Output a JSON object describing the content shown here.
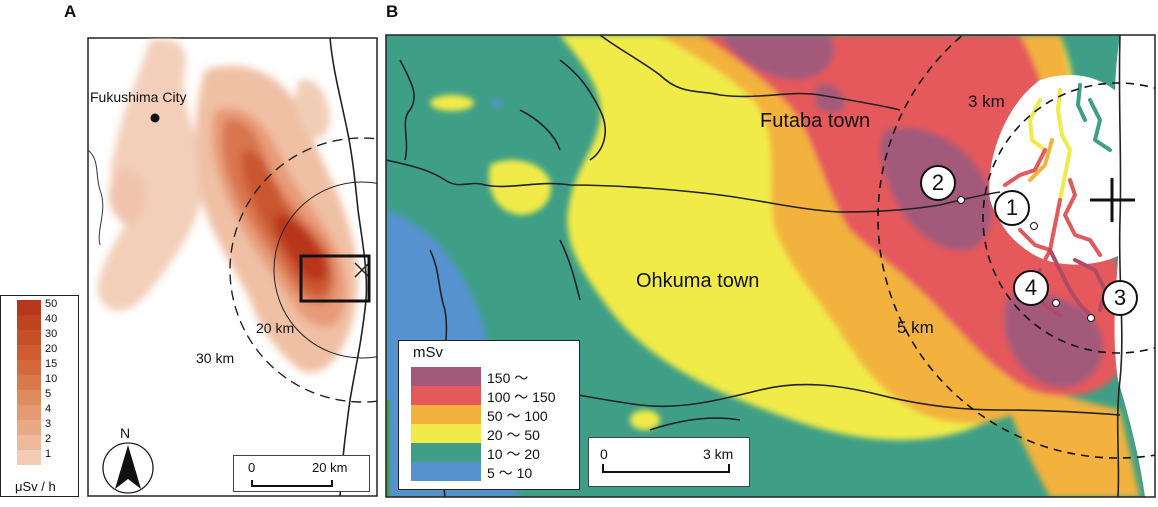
{
  "panel_a": {
    "label": "A",
    "city_label": "Fukushima City",
    "ring_labels": [
      "20 km",
      "30 km"
    ],
    "north_label": "N",
    "scalebar": {
      "start": "0",
      "end": "20 km"
    },
    "legend": {
      "unit": "μSv / h",
      "values": [
        "50",
        "40",
        "30",
        "20",
        "15",
        "10",
        "5",
        "4",
        "3",
        "2",
        "1"
      ],
      "colors": [
        "#b8361b",
        "#c0431f",
        "#c74f27",
        "#cd5c30",
        "#d46a3c",
        "#da7a4c",
        "#df8a5f",
        "#e49a72",
        "#e8aa86",
        "#edbb9c",
        "#f2cdb6"
      ]
    }
  },
  "panel_b": {
    "label": "B",
    "town_labels": [
      "Futaba town",
      "Ohkuma town"
    ],
    "ring_labels": [
      "3 km",
      "5 km"
    ],
    "site_markers": [
      "1",
      "2",
      "3",
      "4"
    ],
    "scalebar": {
      "start": "0",
      "end": "3 km"
    },
    "legend": {
      "title": "mSv",
      "entries": [
        {
          "label": "150 ～",
          "color": "#a35a7a"
        },
        {
          "label": "100 ～ 150",
          "color": "#e5595b"
        },
        {
          "label": "50 ～ 100",
          "color": "#f3b23e"
        },
        {
          "label": "20 ～ 50",
          "color": "#f1eb4a"
        },
        {
          "label": "10 ～ 20",
          "color": "#3e9f86"
        },
        {
          "label": "5 ～ 10",
          "color": "#5592cf"
        }
      ]
    }
  }
}
